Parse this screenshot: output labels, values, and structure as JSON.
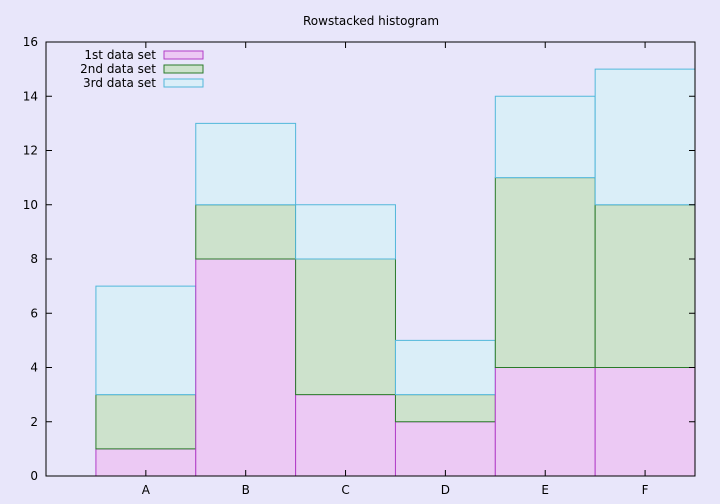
{
  "chart_data": {
    "type": "bar",
    "stacked": true,
    "title": "Rowstacked histogram",
    "xlabel": "",
    "ylabel": "",
    "categories": [
      "A",
      "B",
      "C",
      "D",
      "E",
      "F"
    ],
    "ylim": [
      0,
      16
    ],
    "yticks": [
      0,
      2,
      4,
      6,
      8,
      10,
      12,
      14,
      16
    ],
    "grid": false,
    "legend_position": "top-left",
    "series": [
      {
        "name": "1st data set",
        "values": [
          1,
          8,
          3,
          2,
          4,
          4
        ],
        "fill": "#ecc9f4",
        "stroke": "#b23ec8"
      },
      {
        "name": "2nd data set",
        "values": [
          2,
          2,
          5,
          1,
          7,
          6
        ],
        "fill": "#cde2cc",
        "stroke": "#2a7a2a"
      },
      {
        "name": "3rd data set",
        "values": [
          4,
          3,
          2,
          2,
          3,
          5
        ],
        "fill": "#daeef8",
        "stroke": "#52b7da"
      }
    ]
  }
}
